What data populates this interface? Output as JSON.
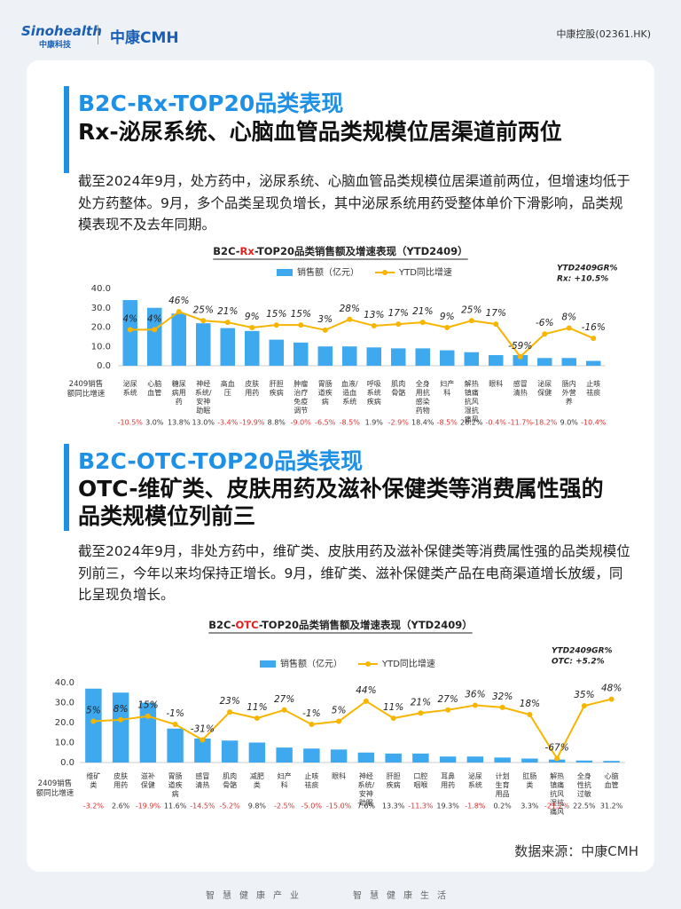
{
  "header": {
    "brand": "Sinohealth",
    "brand_cn": "中康科技",
    "logo2": "中康CMH",
    "ticker": "中康控股(02361.HK)"
  },
  "sections": [
    {
      "heading": "B2C-Rx-TOP20品类表现",
      "subheading": "Rx-泌尿系统、心脑血管品类规模位居渠道前两位",
      "paragraph": "截至2024年9月，处方药中，泌尿系统、心脑血管品类规模位居渠道前两位，但增速均低于处方药整体。9月，多个品类呈现负增长，其中泌尿系统用药受整体单价下滑影响，品类规模表现不及去年同期。"
    },
    {
      "heading": "B2C-OTC-TOP20品类表现",
      "subheading": "OTC-维矿类、皮肤用药及滋补保健类等消费属性强的品类规模位列前三",
      "paragraph": "截至2024年9月，非处方药中，维矿类、皮肤用药及滋补保健类等消费属性强的品类规模位列前三，今年以来均保持正增长。9月，维矿类、滋补保健类产品在电商渠道增长放缓，同比呈现负增长。"
    }
  ],
  "chart_data": [
    {
      "type": "bar",
      "title": [
        "B2C-",
        "Rx",
        "-TOP20品类销售额及增速表现（YTD2409）"
      ],
      "title_highlight_color": "#e02020",
      "annotation": [
        "YTD2409GR%",
        "Rx: +10.5%"
      ],
      "categories": [
        "泌尿系统",
        "心脑血管",
        "糖尿病用药",
        "神经系统/安神助眠",
        "高血压",
        "皮肤用药",
        "肝胆疾病",
        "肿瘤治疗免疫调节",
        "胃肠道疾病",
        "血液/造血系统",
        "呼吸系统疾病",
        "肌肉骨骼",
        "全身用抗感染药物",
        "妇产科",
        "解热镇痛抗风湿抗痛风",
        "眼科",
        "感冒清热",
        "泌尿保健",
        "肠内外营养",
        "止咳祛痰"
      ],
      "series": [
        {
          "name": "销售额（亿元）",
          "color": "#3fa9f0",
          "values": [
            34,
            30,
            27,
            22,
            19.5,
            18,
            13.5,
            12,
            10,
            10,
            9.5,
            9,
            9,
            8,
            7,
            5.5,
            5.5,
            4,
            4,
            2.5
          ]
        },
        {
          "name": "YTD同比增速",
          "color": "#f7b500",
          "type": "line",
          "axis": "y2",
          "values": [
            4,
            4,
            46,
            25,
            21,
            9,
            15,
            15,
            3,
            28,
            13,
            17,
            21,
            9,
            25,
            17,
            -59,
            -6,
            8,
            -16
          ],
          "value_labels": [
            "4%",
            "4%",
            "46%",
            "25%",
            "21%",
            "9%",
            "15%",
            "15%",
            "3%",
            "28%",
            "13%",
            "17%",
            "21%",
            "9%",
            "25%",
            "17%",
            "-59%",
            "-6%",
            "8%",
            "-16%"
          ]
        }
      ],
      "ylim": [
        0,
        40
      ],
      "yticks": [
        {
          "value": 0,
          "label": "0.0"
        },
        {
          "value": 10,
          "label": "10.0"
        },
        {
          "value": 20,
          "label": "20.0"
        },
        {
          "value": 30,
          "label": "30.0"
        },
        {
          "value": 40,
          "label": "40.0"
        }
      ],
      "y2lim": [
        -80,
        100
      ],
      "row": {
        "label": "2409销售额同比增速",
        "negative_color": "#e03030",
        "values": [
          -10.5,
          3.0,
          13.8,
          13.0,
          -3.4,
          -19.9,
          8.8,
          -9.0,
          -6.5,
          -8.5,
          1.9,
          -2.9,
          18.4,
          -8.5,
          26.2,
          -0.4,
          -11.7,
          -18.2,
          9.0,
          -10.4
        ],
        "value_labels": [
          "-10.5%",
          "3.0%",
          "13.8%",
          "13.0%",
          "-3.4%",
          "-19.9%",
          "8.8%",
          "-9.0%",
          "-6.5%",
          "-8.5%",
          "1.9%",
          "-2.9%",
          "18.4%",
          "-8.5%",
          "26.2%",
          "-0.4%",
          "-11.7%",
          "-18.2%",
          "9.0%",
          "-10.4%"
        ]
      }
    },
    {
      "type": "bar",
      "title": [
        "B2C-",
        "OTC",
        "-TOP20品类销售额及增速表现（YTD2409）"
      ],
      "title_highlight_color": "#e02020",
      "annotation": [
        "YTD2409GR%",
        "OTC: +5.2%"
      ],
      "categories": [
        "维矿类",
        "皮肤用药",
        "滋补保健",
        "胃肠道疾病",
        "感冒清热",
        "肌肉骨骼",
        "减肥类",
        "妇产科",
        "止咳祛痰",
        "眼科",
        "神经系统/安神助眠",
        "肝胆疾病",
        "口腔咽喉",
        "耳鼻用药",
        "泌尿系统",
        "计划生育用品",
        "肛肠类",
        "解热镇痛抗风湿抗痛风",
        "全身性抗过敏",
        "心脑血管"
      ],
      "series": [
        {
          "name": "销售额（亿元）",
          "color": "#3fa9f0",
          "values": [
            37,
            35,
            30,
            17,
            12,
            11,
            10,
            7.5,
            7,
            6.5,
            5,
            4.5,
            4.5,
            3,
            3,
            2.5,
            2,
            1.5,
            1,
            0.8
          ]
        },
        {
          "name": "YTD同比增速",
          "color": "#f7b500",
          "type": "line",
          "axis": "y2",
          "values": [
            5,
            8,
            15,
            -1,
            -31,
            23,
            11,
            27,
            -1,
            5,
            44,
            11,
            21,
            27,
            36,
            32,
            18,
            -67,
            35,
            48
          ],
          "value_labels": [
            "5%",
            "8%",
            "15%",
            "-1%",
            "-31%",
            "23%",
            "11%",
            "27%",
            "-1%",
            "5%",
            "44%",
            "11%",
            "21%",
            "27%",
            "36%",
            "32%",
            "18%",
            "-67%",
            "35%",
            "48%"
          ]
        }
      ],
      "ylim": [
        0,
        40
      ],
      "yticks": [
        {
          "value": 0,
          "label": "0.0"
        },
        {
          "value": 10,
          "label": "10.0"
        },
        {
          "value": 20,
          "label": "20.0"
        },
        {
          "value": 30,
          "label": "30.0"
        },
        {
          "value": 40,
          "label": "40.0"
        }
      ],
      "y2lim": [
        -75,
        80
      ],
      "row": {
        "label": "2409销售额同比增速",
        "negative_color": "#e03030",
        "values": [
          -3.2,
          2.6,
          -19.9,
          11.6,
          -14.5,
          -5.2,
          9.8,
          -2.5,
          -5.0,
          -15.0,
          7.6,
          13.3,
          -11.3,
          19.3,
          -1.8,
          0.2,
          3.3,
          -21.2,
          22.5,
          31.2
        ],
        "value_labels": [
          "-3.2%",
          "2.6%",
          "-19.9%",
          "11.6%",
          "-14.5%",
          "-5.2%",
          "9.8%",
          "-2.5%",
          "-5.0%",
          "-15.0%",
          "7.6%",
          "13.3%",
          "-11.3%",
          "19.3%",
          "-1.8%",
          "0.2%",
          "3.3%",
          "-21.2%",
          "22.5%",
          "31.2%"
        ]
      }
    }
  ],
  "source": "数据来源：中康CMH",
  "footer": [
    "智慧健康产业",
    "智慧健康生活"
  ]
}
